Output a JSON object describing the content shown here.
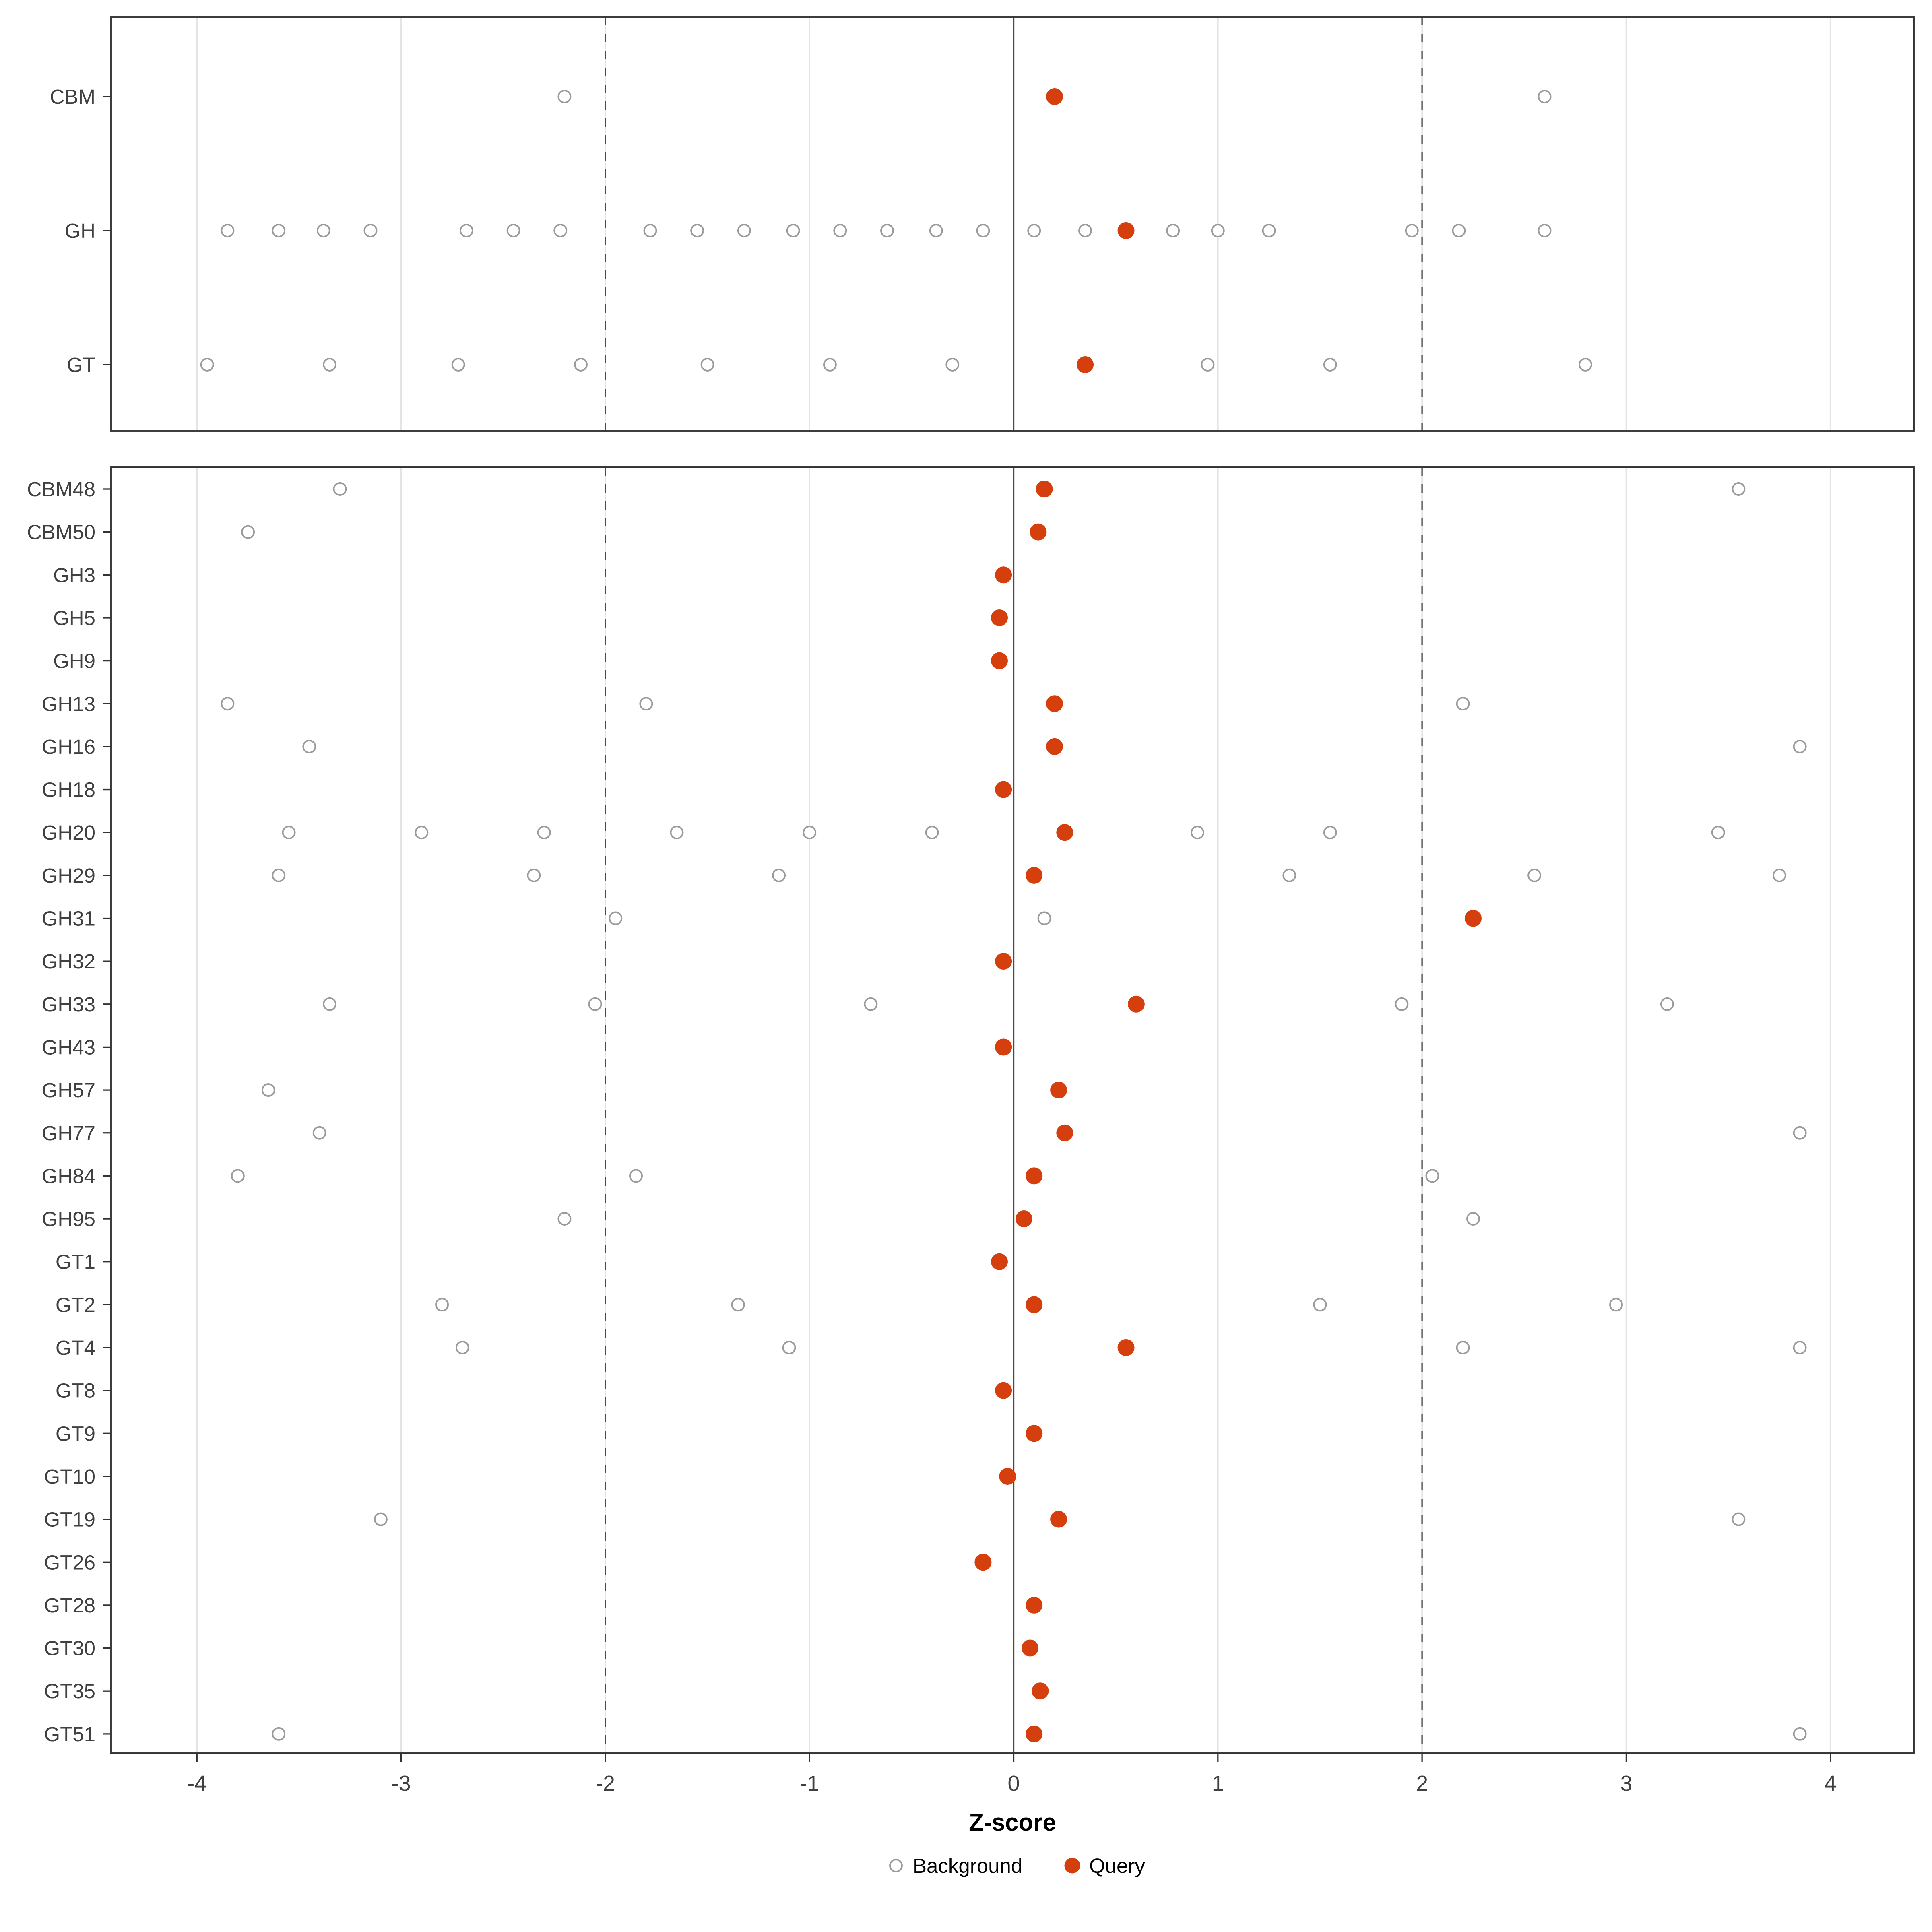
{
  "figure": {
    "xlabel": "Z-score",
    "legend": {
      "background_label": "Background",
      "query_label": "Query"
    }
  },
  "chart_data": {
    "type": "scatter",
    "title": "",
    "xlabel": "Z-score",
    "ylabel": "",
    "xlim": [
      -4.4,
      4.4
    ],
    "x_ticks": [
      -4,
      -3,
      -2,
      -1,
      0,
      1,
      2,
      3,
      4
    ],
    "grid": true,
    "legend_position": "bottom",
    "reference_lines": {
      "solid": [
        0
      ],
      "dashed": [
        -2,
        2
      ]
    },
    "legend": [
      {
        "label": "Background",
        "marker": "open-circle"
      },
      {
        "label": "Query",
        "marker": "filled-circle"
      }
    ],
    "colors": {
      "query_fill": "#d53e0d",
      "background_stroke": "#9b9b9b",
      "grid": "#e4e4e4",
      "reference": "#4a4a4a",
      "panel_border": "#333333",
      "text": "#404040",
      "axis_title": "#000000"
    },
    "panels": [
      {
        "name": "class-summary",
        "rows": [
          {
            "label": "CBM",
            "background": [
              -2.2,
              2.6
            ],
            "query": [
              0.2
            ]
          },
          {
            "label": "GH",
            "background": [
              -3.85,
              -3.6,
              -3.38,
              -3.15,
              -2.68,
              -2.45,
              -2.22,
              -1.78,
              -1.55,
              -1.32,
              -1.08,
              -0.85,
              -0.62,
              -0.38,
              -0.15,
              0.1,
              0.35,
              0.78,
              1.0,
              1.25,
              1.95,
              2.18,
              2.6
            ],
            "query": [
              0.55
            ]
          },
          {
            "label": "GT",
            "background": [
              -3.95,
              -3.35,
              -2.72,
              -2.12,
              -1.5,
              -0.9,
              -0.3,
              0.95,
              1.55,
              2.8
            ],
            "query": [
              0.35
            ]
          }
        ]
      },
      {
        "name": "family-detail",
        "rows": [
          {
            "label": "CBM48",
            "background": [
              -3.3,
              3.55
            ],
            "query": [
              0.15
            ]
          },
          {
            "label": "CBM50",
            "background": [
              -3.75
            ],
            "query": [
              0.12
            ]
          },
          {
            "label": "GH3",
            "background": [],
            "query": [
              -0.05
            ]
          },
          {
            "label": "GH5",
            "background": [],
            "query": [
              -0.07
            ]
          },
          {
            "label": "GH9",
            "background": [],
            "query": [
              -0.07
            ]
          },
          {
            "label": "GH13",
            "background": [
              -3.85,
              -1.8,
              2.2
            ],
            "query": [
              0.2
            ]
          },
          {
            "label": "GH16",
            "background": [
              -3.45,
              3.85
            ],
            "query": [
              0.2
            ]
          },
          {
            "label": "GH18",
            "background": [],
            "query": [
              -0.05
            ]
          },
          {
            "label": "GH20",
            "background": [
              -3.55,
              -2.9,
              -2.3,
              -1.65,
              -1.0,
              -0.4,
              0.9,
              1.55,
              3.45
            ],
            "query": [
              0.25
            ]
          },
          {
            "label": "GH29",
            "background": [
              -3.6,
              -2.35,
              -1.15,
              1.35,
              2.55,
              3.75
            ],
            "query": [
              0.1
            ]
          },
          {
            "label": "GH31",
            "background": [
              -1.95,
              0.15
            ],
            "query": [
              2.25
            ]
          },
          {
            "label": "GH32",
            "background": [],
            "query": [
              -0.05
            ]
          },
          {
            "label": "GH33",
            "background": [
              -3.35,
              -2.05,
              -0.7,
              1.9,
              3.2
            ],
            "query": [
              0.6
            ]
          },
          {
            "label": "GH43",
            "background": [],
            "query": [
              -0.05
            ]
          },
          {
            "label": "GH57",
            "background": [
              -3.65
            ],
            "query": [
              0.22
            ]
          },
          {
            "label": "GH77",
            "background": [
              -3.4,
              3.85
            ],
            "query": [
              0.25
            ]
          },
          {
            "label": "GH84",
            "background": [
              -3.8,
              -1.85,
              2.05
            ],
            "query": [
              0.1
            ]
          },
          {
            "label": "GH95",
            "background": [
              -2.2,
              2.25
            ],
            "query": [
              0.05
            ]
          },
          {
            "label": "GT1",
            "background": [],
            "query": [
              -0.07
            ]
          },
          {
            "label": "GT2",
            "background": [
              -2.8,
              -1.35,
              1.5,
              2.95
            ],
            "query": [
              0.1
            ]
          },
          {
            "label": "GT4",
            "background": [
              -2.7,
              -1.1,
              2.2,
              3.85
            ],
            "query": [
              0.55
            ]
          },
          {
            "label": "GT8",
            "background": [],
            "query": [
              -0.05
            ]
          },
          {
            "label": "GT9",
            "background": [],
            "query": [
              0.1
            ]
          },
          {
            "label": "GT10",
            "background": [],
            "query": [
              -0.03
            ]
          },
          {
            "label": "GT19",
            "background": [
              -3.1,
              3.55
            ],
            "query": [
              0.22
            ]
          },
          {
            "label": "GT26",
            "background": [],
            "query": [
              -0.15
            ]
          },
          {
            "label": "GT28",
            "background": [],
            "query": [
              0.1
            ]
          },
          {
            "label": "GT30",
            "background": [],
            "query": [
              0.08
            ]
          },
          {
            "label": "GT35",
            "background": [],
            "query": [
              0.13
            ]
          },
          {
            "label": "GT51",
            "background": [
              -3.6,
              3.85
            ],
            "query": [
              0.1
            ]
          }
        ]
      }
    ]
  }
}
